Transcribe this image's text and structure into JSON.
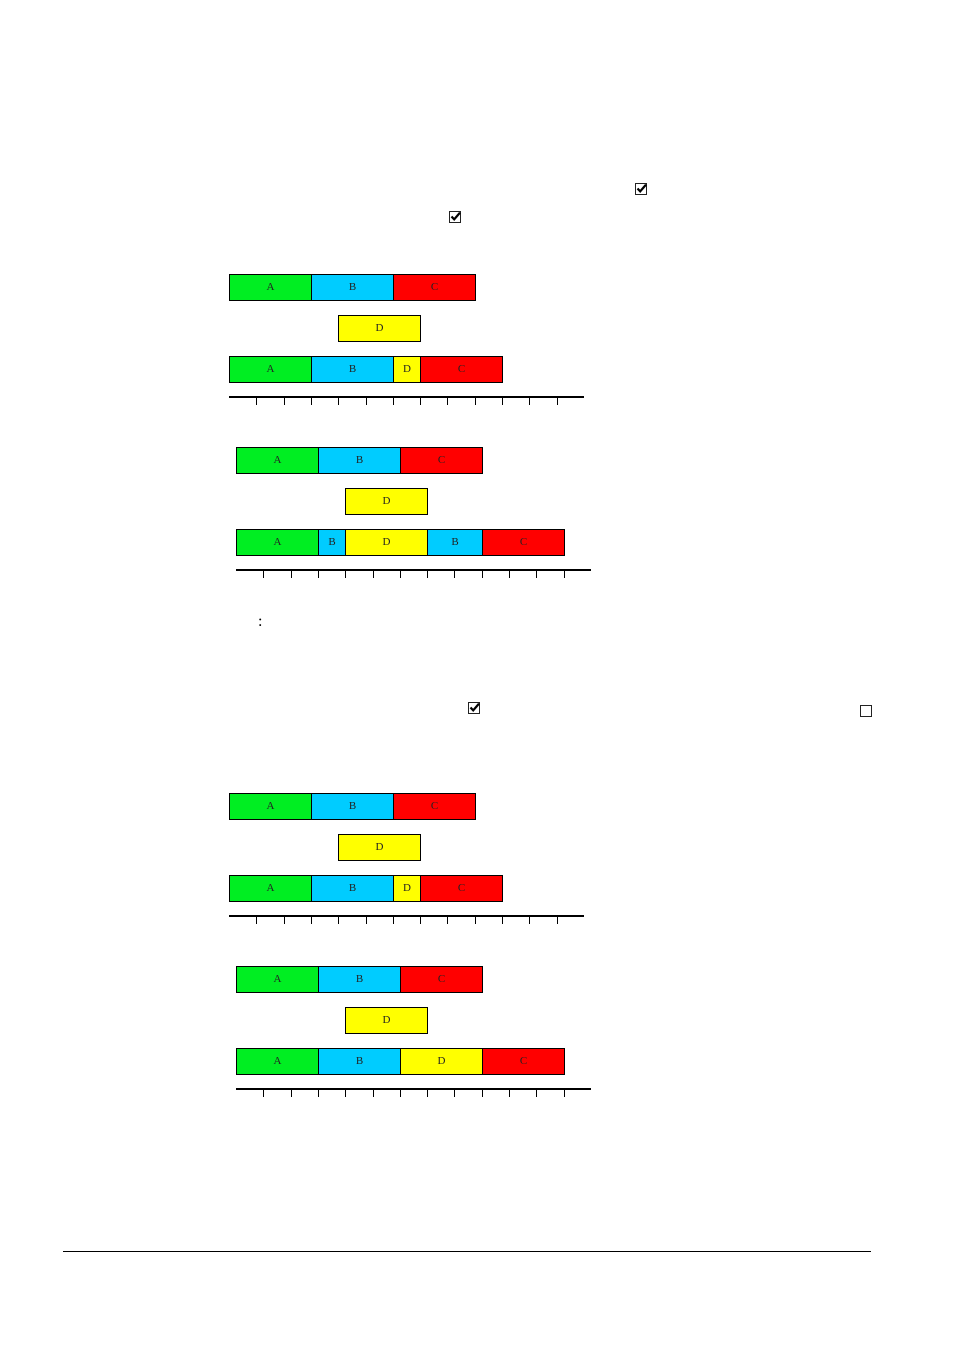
{
  "checkboxes": [
    {
      "name": "checkbox-1",
      "checked": true
    },
    {
      "name": "checkbox-2",
      "checked": true
    },
    {
      "name": "checkbox-3",
      "checked": true
    },
    {
      "name": "checkbox-4",
      "checked": false
    }
  ],
  "colon": ":",
  "colors": {
    "A": "#00ee22",
    "B": "#00ccff",
    "C": "#ff0000",
    "D": "#ffff00"
  },
  "diagrams": [
    {
      "rows": [
        [
          {
            "label": "A",
            "units": 3
          },
          {
            "label": "B",
            "units": 3
          },
          {
            "label": "C",
            "units": 3
          }
        ],
        [
          {
            "label": "",
            "units": 4,
            "gap": true
          },
          {
            "label": "D",
            "units": 3
          }
        ],
        [
          {
            "label": "A",
            "units": 3
          },
          {
            "label": "B",
            "units": 3
          },
          {
            "label": "D",
            "units": 1
          },
          {
            "label": "C",
            "units": 3
          }
        ]
      ],
      "ticks": 13
    },
    {
      "rows": [
        [
          {
            "label": "A",
            "units": 3
          },
          {
            "label": "B",
            "units": 3
          },
          {
            "label": "C",
            "units": 3
          }
        ],
        [
          {
            "label": "",
            "units": 4,
            "gap": true
          },
          {
            "label": "D",
            "units": 3
          }
        ],
        [
          {
            "label": "A",
            "units": 3
          },
          {
            "label": "B",
            "units": 1
          },
          {
            "label": "D",
            "units": 3
          },
          {
            "label": "B",
            "units": 2
          },
          {
            "label": "C",
            "units": 3
          }
        ]
      ],
      "ticks": 13
    },
    {
      "rows": [
        [
          {
            "label": "A",
            "units": 3
          },
          {
            "label": "B",
            "units": 3
          },
          {
            "label": "C",
            "units": 3
          }
        ],
        [
          {
            "label": "",
            "units": 4,
            "gap": true
          },
          {
            "label": "D",
            "units": 3
          }
        ],
        [
          {
            "label": "A",
            "units": 3
          },
          {
            "label": "B",
            "units": 3
          },
          {
            "label": "D",
            "units": 1
          },
          {
            "label": "C",
            "units": 3
          }
        ]
      ],
      "ticks": 13
    },
    {
      "rows": [
        [
          {
            "label": "A",
            "units": 3
          },
          {
            "label": "B",
            "units": 3
          },
          {
            "label": "C",
            "units": 3
          }
        ],
        [
          {
            "label": "",
            "units": 4,
            "gap": true
          },
          {
            "label": "D",
            "units": 3
          }
        ],
        [
          {
            "label": "A",
            "units": 3
          },
          {
            "label": "B",
            "units": 3
          },
          {
            "label": "D",
            "units": 3
          },
          {
            "label": "C",
            "units": 3
          }
        ]
      ],
      "ticks": 13
    }
  ]
}
